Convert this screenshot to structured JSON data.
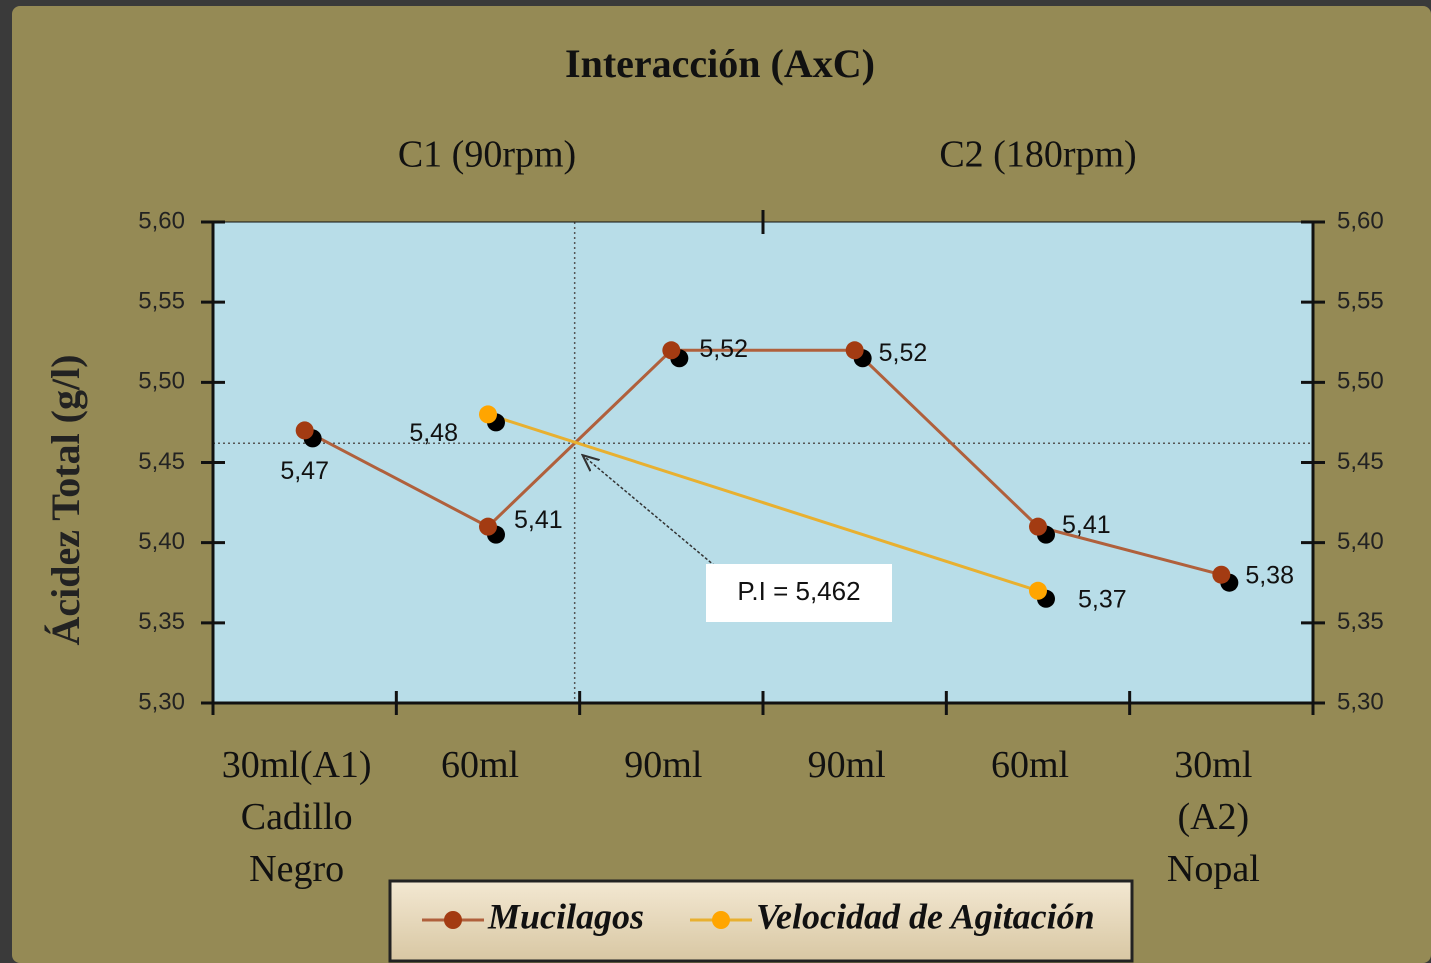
{
  "chart_data": {
    "type": "line",
    "title": "Interacción  (AxC)",
    "groups": [
      "C1 (90rpm)",
      "C2 (180rpm)"
    ],
    "ylabel": "Ácidez Total (g/l)",
    "categories": [
      [
        "30ml(A1)",
        "Cadillo",
        "Negro"
      ],
      [
        "60ml"
      ],
      [
        "90ml"
      ],
      [
        "90ml"
      ],
      [
        "60ml"
      ],
      [
        "30ml",
        "(A2)",
        "Nopal"
      ]
    ],
    "series": [
      {
        "name": "Mucilagos",
        "color": "#a33b12",
        "line_color": "#b0603c",
        "values": [
          5.47,
          5.41,
          5.52,
          5.52,
          5.41,
          5.38
        ],
        "value_labels": [
          "5,47",
          "5,41",
          "5,52",
          "5,52",
          "5,41",
          "5,38"
        ]
      },
      {
        "name": "Velocidad de Agitación",
        "color": "#ffa500",
        "line_color": "#e8b030",
        "connect_gaps": true,
        "values": [
          null,
          5.48,
          null,
          null,
          5.37,
          null
        ],
        "value_labels": [
          null,
          "5,48",
          null,
          null,
          "5,37",
          null
        ]
      }
    ],
    "ylim": [
      5.3,
      5.6
    ],
    "yticks": [
      {
        "value": 5.3,
        "label": "5,30"
      },
      {
        "value": 5.35,
        "label": "5,35"
      },
      {
        "value": 5.4,
        "label": "5,40"
      },
      {
        "value": 5.45,
        "label": "5,45"
      },
      {
        "value": 5.5,
        "label": "5,50"
      },
      {
        "value": 5.55,
        "label": "5,55"
      },
      {
        "value": 5.6,
        "label": "5,60"
      }
    ],
    "y2lim": [
      5.3,
      5.6
    ],
    "y2ticks": [
      {
        "value": 5.3,
        "label": "5,30"
      },
      {
        "value": 5.35,
        "label": "5,35"
      },
      {
        "value": 5.4,
        "label": "5,40"
      },
      {
        "value": 5.45,
        "label": "5,45"
      },
      {
        "value": 5.5,
        "label": "5,50"
      },
      {
        "value": 5.55,
        "label": "5,55"
      },
      {
        "value": 5.6,
        "label": "5,60"
      }
    ],
    "annotation": {
      "text": "P.I = 5,462",
      "value": 5.462
    },
    "legend": "bottom"
  }
}
